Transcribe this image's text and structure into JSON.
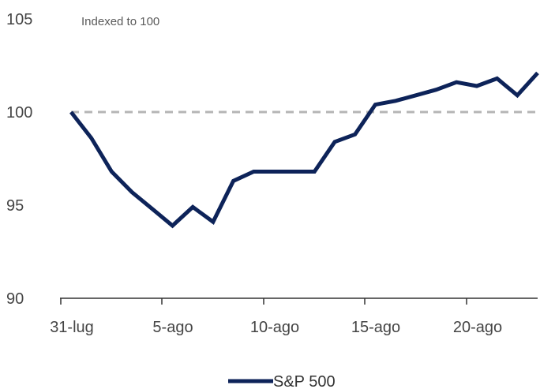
{
  "chart_data": {
    "type": "line",
    "subtitle": "Indexed to 100",
    "x": [
      "31-lug",
      "1-ago",
      "2-ago",
      "3-ago",
      "4-ago",
      "5-ago",
      "6-ago",
      "7-ago",
      "8-ago",
      "9-ago",
      "10-ago",
      "11-ago",
      "12-ago",
      "13-ago",
      "14-ago",
      "15-ago",
      "16-ago",
      "17-ago",
      "18-ago",
      "19-ago",
      "20-ago",
      "21-ago",
      "22-ago",
      "23-ago"
    ],
    "x_tick_labels": [
      "31-lug",
      "5-ago",
      "10-ago",
      "15-ago",
      "20-ago"
    ],
    "y_ticks": [
      90,
      95,
      100,
      105
    ],
    "ylim": [
      90,
      105
    ],
    "reference_line": 100,
    "series": [
      {
        "name": "S&P 500",
        "color": "#0d2359",
        "values": [
          100.0,
          98.6,
          96.8,
          95.7,
          94.8,
          93.9,
          94.9,
          94.1,
          96.3,
          96.8,
          96.8,
          96.8,
          96.8,
          98.4,
          98.8,
          100.4,
          100.6,
          100.9,
          101.2,
          101.6,
          101.4,
          101.8,
          100.9,
          102.1
        ]
      }
    ],
    "legend": {
      "position": "bottom"
    },
    "grid": false,
    "colors": {
      "line": "#0d2359",
      "reference": "#b5b5b5",
      "axis": "#333333"
    }
  }
}
